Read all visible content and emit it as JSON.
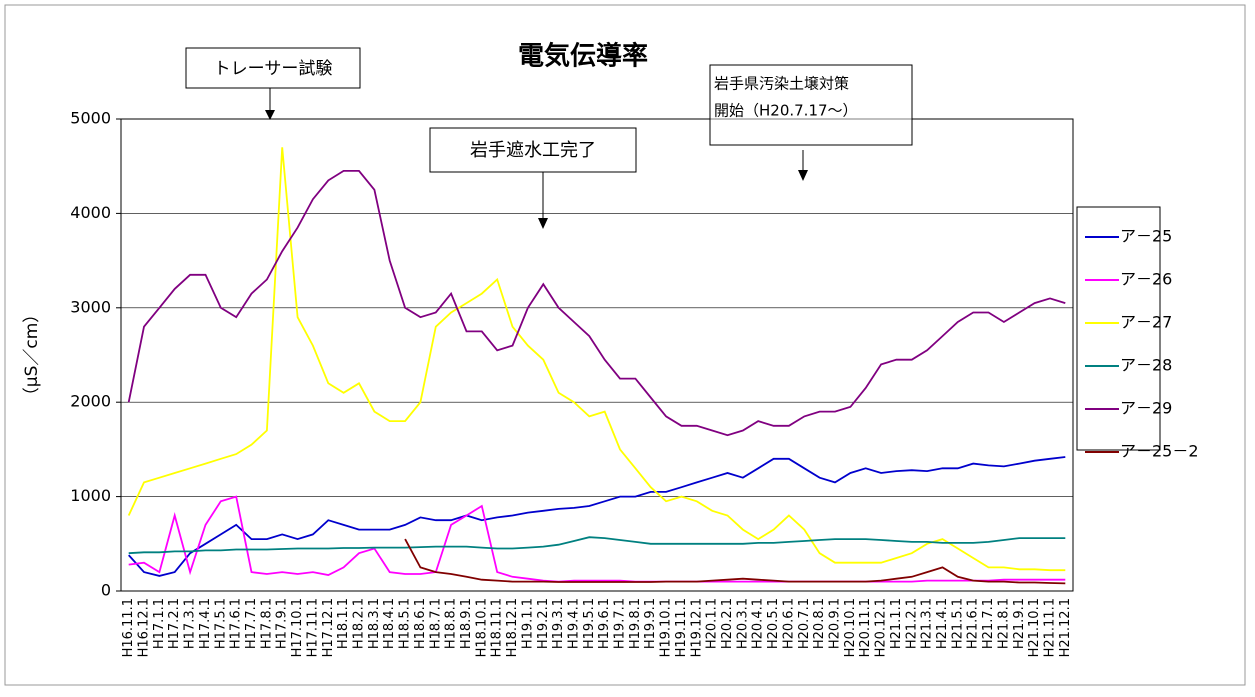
{
  "chart_data": {
    "type": "line",
    "title": "電気伝導率",
    "y_label": "（μS／cm）",
    "categories": [
      "H16.11.1",
      "H16.12.1",
      "H17.1.1",
      "H17.2.1",
      "H17.3.1",
      "H17.4.1",
      "H17.5.1",
      "H17.6.1",
      "H17.7.1",
      "H17.8.1",
      "H17.9.1",
      "H17.10.1",
      "H17.11.1",
      "H17.12.1",
      "H18.1.1",
      "H18.2.1",
      "H18.3.1",
      "H18.4.1",
      "H18.5.1",
      "H18.6.1",
      "H18.7.1",
      "H18.8.1",
      "H18.9.1",
      "H18.10.1",
      "H18.11.1",
      "H18.12.1",
      "H19.1.1",
      "H19.2.1",
      "H19.3.1",
      "H19.4.1",
      "H19.5.1",
      "H19.6.1",
      "H19.7.1",
      "H19.8.1",
      "H19.9.1",
      "H19.10.1",
      "H19.11.1",
      "H19.12.1",
      "H20.1.1",
      "H20.2.1",
      "H20.3.1",
      "H20.4.1",
      "H20.5.1",
      "H20.6.1",
      "H20.7.1",
      "H20.8.1",
      "H20.9.1",
      "H20.10.1",
      "H20.11.1",
      "H20.12.1",
      "H21.1.1",
      "H21.2.1",
      "H21.3.1",
      "H21.4.1",
      "H21.5.1",
      "H21.6.1",
      "H21.7.1",
      "H21.8.1",
      "H21.9.1",
      "H21.10.1",
      "H21.11.1",
      "H21.12.1"
    ],
    "series": [
      {
        "name": "ア－25",
        "color": "#0000cc",
        "values": [
          380,
          200,
          160,
          200,
          400,
          500,
          600,
          700,
          550,
          550,
          600,
          550,
          600,
          750,
          700,
          650,
          650,
          650,
          700,
          780,
          750,
          750,
          800,
          750,
          780,
          800,
          830,
          850,
          870,
          880,
          900,
          950,
          1000,
          1000,
          1050,
          1050,
          1100,
          1150,
          1200,
          1250,
          1200,
          1300,
          1400,
          1400,
          1300,
          1200,
          1150,
          1250,
          1300,
          1250,
          1270,
          1280,
          1270,
          1300,
          1300,
          1350,
          1330,
          1320,
          1350,
          1380,
          1400,
          1420
        ]
      },
      {
        "name": "ア－26",
        "color": "#ff00ff",
        "values": [
          280,
          300,
          200,
          800,
          200,
          700,
          950,
          1000,
          200,
          180,
          200,
          180,
          200,
          170,
          250,
          400,
          450,
          200,
          180,
          180,
          200,
          700,
          800,
          900,
          200,
          150,
          130,
          110,
          100,
          110,
          110,
          110,
          110,
          100,
          100,
          100,
          100,
          100,
          100,
          100,
          100,
          100,
          100,
          100,
          100,
          100,
          100,
          100,
          100,
          100,
          100,
          100,
          110,
          110,
          110,
          110,
          110,
          120,
          120,
          120,
          120,
          120
        ]
      },
      {
        "name": "ア－27",
        "color": "#ffff00",
        "values": [
          800,
          1150,
          1200,
          1250,
          1300,
          1350,
          1400,
          1450,
          1550,
          1700,
          4700,
          2900,
          2600,
          2200,
          2100,
          2200,
          1900,
          1800,
          1800,
          2000,
          2800,
          2950,
          3050,
          3150,
          3300,
          2800,
          2600,
          2450,
          2100,
          2000,
          1850,
          1900,
          1500,
          1300,
          1100,
          950,
          1000,
          950,
          850,
          800,
          650,
          550,
          650,
          800,
          650,
          400,
          300,
          300,
          300,
          300,
          350,
          400,
          500,
          550,
          450,
          350,
          250,
          250,
          230,
          230,
          220,
          220
        ]
      },
      {
        "name": "ア－28",
        "color": "#008080",
        "values": [
          400,
          410,
          410,
          420,
          420,
          430,
          430,
          440,
          440,
          440,
          445,
          450,
          450,
          450,
          455,
          455,
          460,
          460,
          460,
          465,
          470,
          470,
          470,
          460,
          450,
          450,
          460,
          470,
          490,
          530,
          570,
          560,
          540,
          520,
          500,
          500,
          500,
          500,
          500,
          500,
          500,
          510,
          510,
          520,
          530,
          540,
          550,
          550,
          550,
          540,
          530,
          520,
          520,
          510,
          510,
          510,
          520,
          540,
          560,
          560,
          560,
          560
        ]
      },
      {
        "name": "ア－29",
        "color": "#800080",
        "values": [
          2000,
          2800,
          3000,
          3200,
          3350,
          3350,
          3000,
          2900,
          3150,
          3300,
          3600,
          3850,
          4150,
          4350,
          4450,
          4450,
          4250,
          3500,
          3000,
          2900,
          2950,
          3150,
          2750,
          2750,
          2550,
          2600,
          3000,
          3250,
          3000,
          2850,
          2700,
          2450,
          2250,
          2250,
          2050,
          1850,
          1750,
          1750,
          1700,
          1650,
          1700,
          1800,
          1750,
          1750,
          1850,
          1900,
          1900,
          1950,
          2150,
          2400,
          2450,
          2450,
          2550,
          2700,
          2850,
          2950,
          2950,
          2850,
          2950,
          3050,
          3100,
          3050
        ]
      },
      {
        "name": "ア－25－2",
        "color": "#800000",
        "values": [
          null,
          null,
          null,
          null,
          null,
          null,
          null,
          null,
          null,
          null,
          null,
          null,
          null,
          null,
          null,
          null,
          null,
          null,
          550,
          250,
          200,
          180,
          150,
          120,
          110,
          100,
          100,
          100,
          95,
          95,
          95,
          95,
          95,
          95,
          95,
          100,
          100,
          100,
          110,
          120,
          130,
          120,
          110,
          100,
          100,
          100,
          100,
          100,
          100,
          110,
          130,
          150,
          200,
          250,
          150,
          110,
          100,
          100,
          90,
          90,
          85,
          80
        ]
      }
    ],
    "ylim": [
      0,
      5000
    ],
    "yticks": [
      0,
      1000,
      2000,
      3000,
      4000,
      5000
    ],
    "grid": true,
    "legend": "right",
    "annotations": [
      {
        "text": [
          "トレーサー試験"
        ]
      },
      {
        "text": [
          "岩手遮水工完了"
        ]
      },
      {
        "text": [
          "岩手県汚染土壌対策",
          "開始（H20.7.17～）"
        ]
      }
    ]
  }
}
